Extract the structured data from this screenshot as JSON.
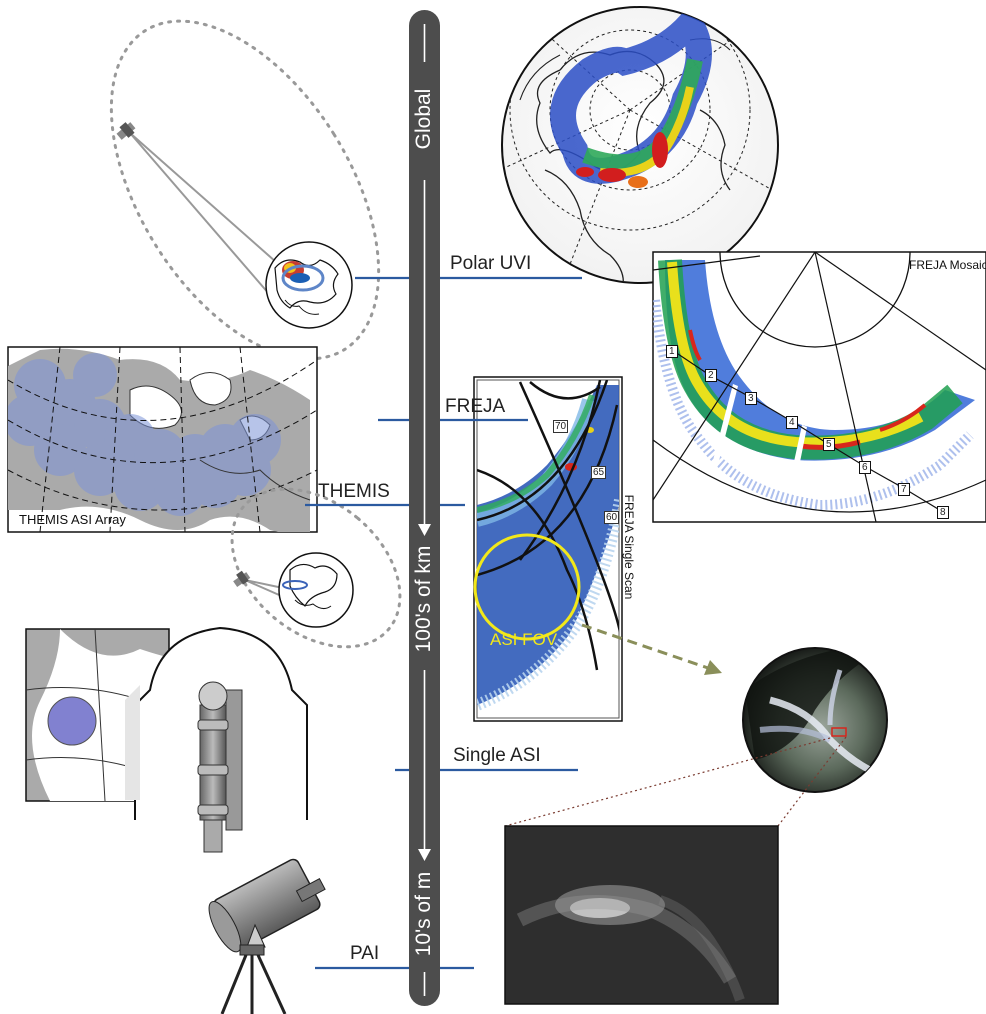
{
  "scale": {
    "top": "Global",
    "middle": "100's of km",
    "bottom": "10's of m"
  },
  "levels": {
    "polar_uvi": "Polar UVI",
    "freja": "FREJA",
    "themis": "THEMIS",
    "single_asi": "Single ASI",
    "pai": "PAI"
  },
  "panels": {
    "themis_array": "THEMIS ASI Array",
    "freja_mosaic": "FREJA Mosaic",
    "freja_single_scan": "FREJA Single Scan",
    "asi_fov": "ASI FOV"
  },
  "latitudes": [
    "70",
    "65",
    "60"
  ],
  "mosaic_markers": [
    "1",
    "2",
    "3",
    "4",
    "5",
    "6",
    "7",
    "8"
  ],
  "colors": {
    "level_line": "#2b5aa0",
    "scale_bar": "#4d4d4d",
    "asi_fov_circle": "#f2e81a",
    "fov_arrow": "#8a8f5a"
  }
}
